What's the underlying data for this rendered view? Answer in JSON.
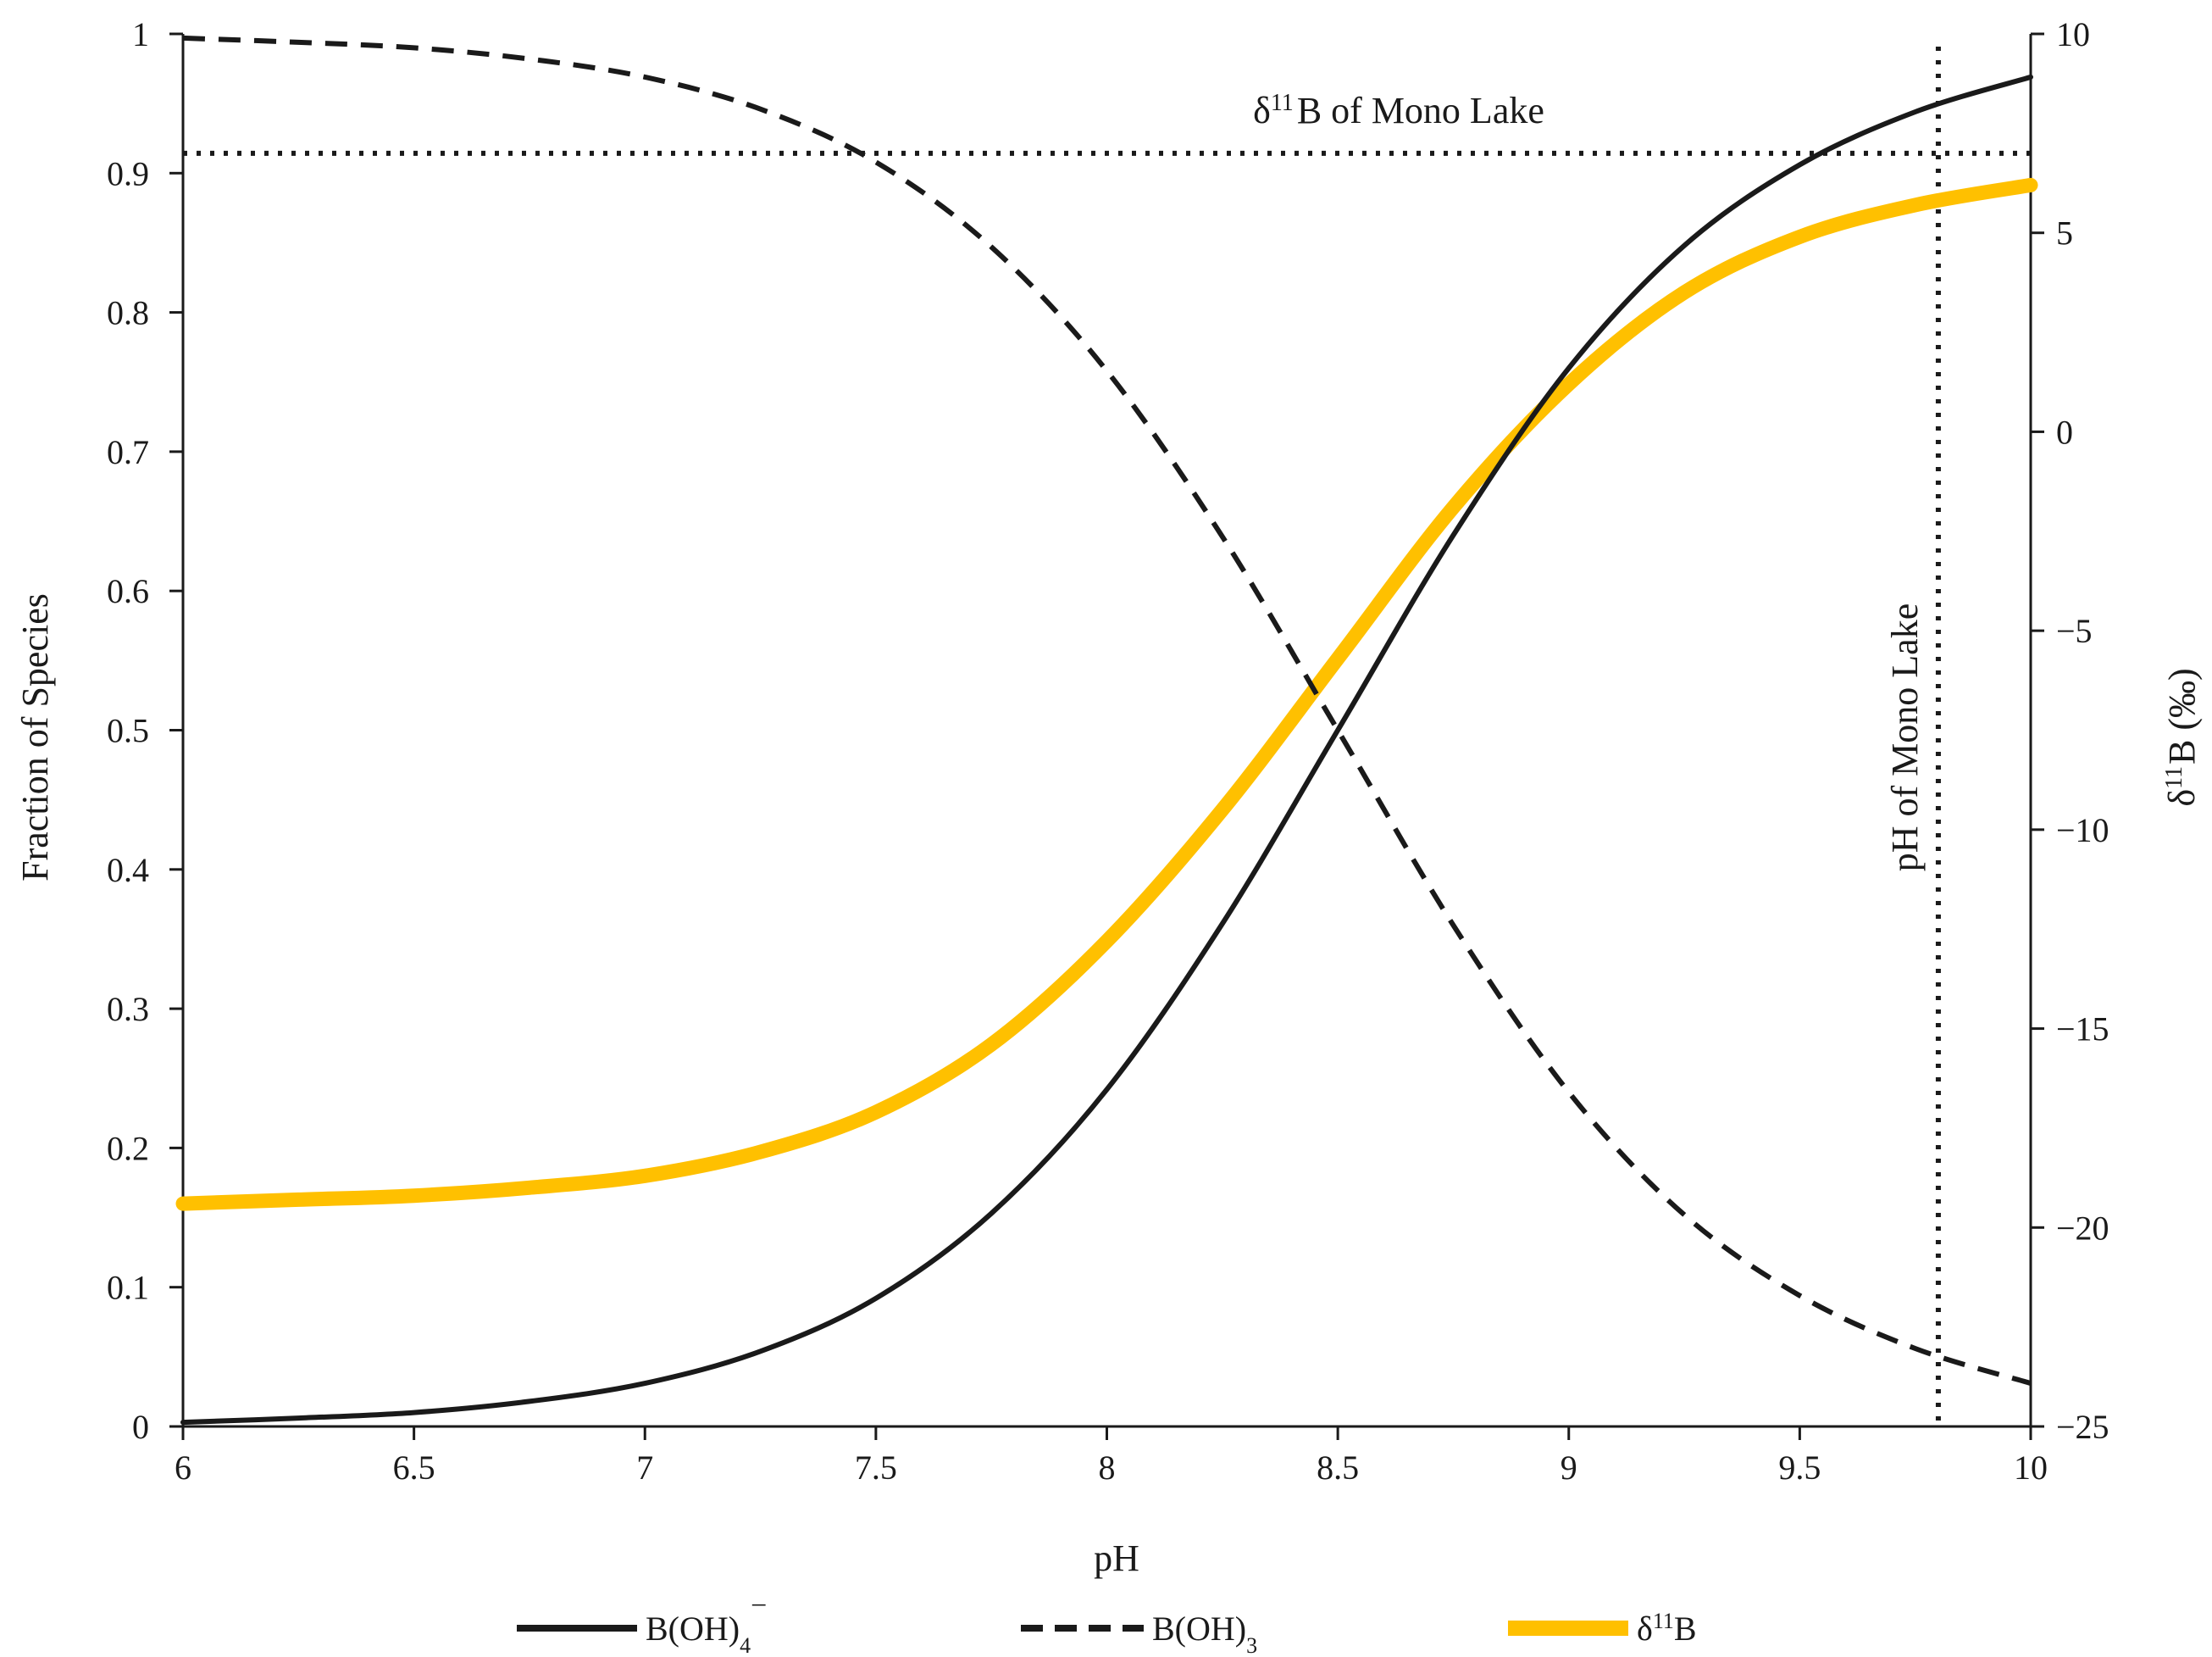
{
  "chart_data": {
    "type": "line",
    "title": "",
    "xlabel": "pH",
    "ylabel_left": "Fraction of Species",
    "ylabel_right": "δ11B (‰)",
    "xlim": [
      6,
      10
    ],
    "ylim_left": [
      0,
      1
    ],
    "ylim_right": [
      -25,
      10
    ],
    "x_ticks": [
      6,
      6.5,
      7,
      7.5,
      8,
      8.5,
      9,
      9.5,
      10
    ],
    "x_tick_labels": [
      "6",
      "6.5",
      "7",
      "7.5",
      "8",
      "8.5",
      "9",
      "9.5",
      "10"
    ],
    "y_left_ticks": [
      0,
      0.1,
      0.2,
      0.3,
      0.4,
      0.5,
      0.6,
      0.7,
      0.8,
      0.9,
      1
    ],
    "y_left_tick_labels": [
      "0",
      "0.1",
      "0.2",
      "0.3",
      "0.4",
      "0.5",
      "0.6",
      "0.7",
      "0.8",
      "0.9",
      "1"
    ],
    "y_right_ticks": [
      10,
      5,
      0,
      -5,
      -10,
      -15,
      -20,
      -25
    ],
    "y_right_tick_labels": [
      "10",
      "5",
      "0",
      "−5",
      "−10",
      "−15",
      "−20",
      "−25"
    ],
    "grid": false,
    "legend_position": "bottom",
    "x": [
      6.0,
      6.25,
      6.5,
      6.75,
      7.0,
      7.25,
      7.5,
      7.75,
      8.0,
      8.25,
      8.5,
      8.75,
      9.0,
      9.25,
      9.5,
      9.75,
      10.0
    ],
    "series": [
      {
        "name": "B(OH)4−",
        "legend_label": "B(OH)4",
        "legend_sub": "4",
        "legend_sup": "−",
        "axis": "left",
        "color": "#1a1a1a",
        "style": "solid",
        "values": [
          0.003,
          0.006,
          0.01,
          0.018,
          0.031,
          0.054,
          0.092,
          0.153,
          0.242,
          0.361,
          0.5,
          0.64,
          0.76,
          0.848,
          0.906,
          0.944,
          0.969
        ]
      },
      {
        "name": "B(OH)3",
        "legend_label": "B(OH)3",
        "legend_sub": "3",
        "legend_sup": "",
        "axis": "left",
        "color": "#1a1a1a",
        "style": "dashed",
        "values": [
          0.997,
          0.994,
          0.99,
          0.982,
          0.969,
          0.946,
          0.908,
          0.847,
          0.758,
          0.639,
          0.5,
          0.36,
          0.24,
          0.152,
          0.094,
          0.056,
          0.031
        ]
      },
      {
        "name": "δ11B",
        "legend_label": "δ11B",
        "legend_sub": "",
        "legend_sup": "11",
        "axis": "right",
        "color": "#FFC000",
        "style": "solid",
        "values": [
          -19.4,
          -19.3,
          -19.2,
          -19.0,
          -18.7,
          -18.1,
          -17.1,
          -15.4,
          -12.8,
          -9.5,
          -5.7,
          -1.9,
          1.2,
          3.5,
          4.9,
          5.7,
          6.2
        ]
      }
    ],
    "annotations": [
      {
        "text": "δ11B of Mono Lake",
        "main": "δ",
        "sup": "11",
        "rest": "B of Mono Lake",
        "type": "hline",
        "axis": "right",
        "value": 7
      },
      {
        "text": "pH of Mono Lake",
        "type": "vline",
        "axis": "x",
        "value": 9.8
      }
    ]
  }
}
